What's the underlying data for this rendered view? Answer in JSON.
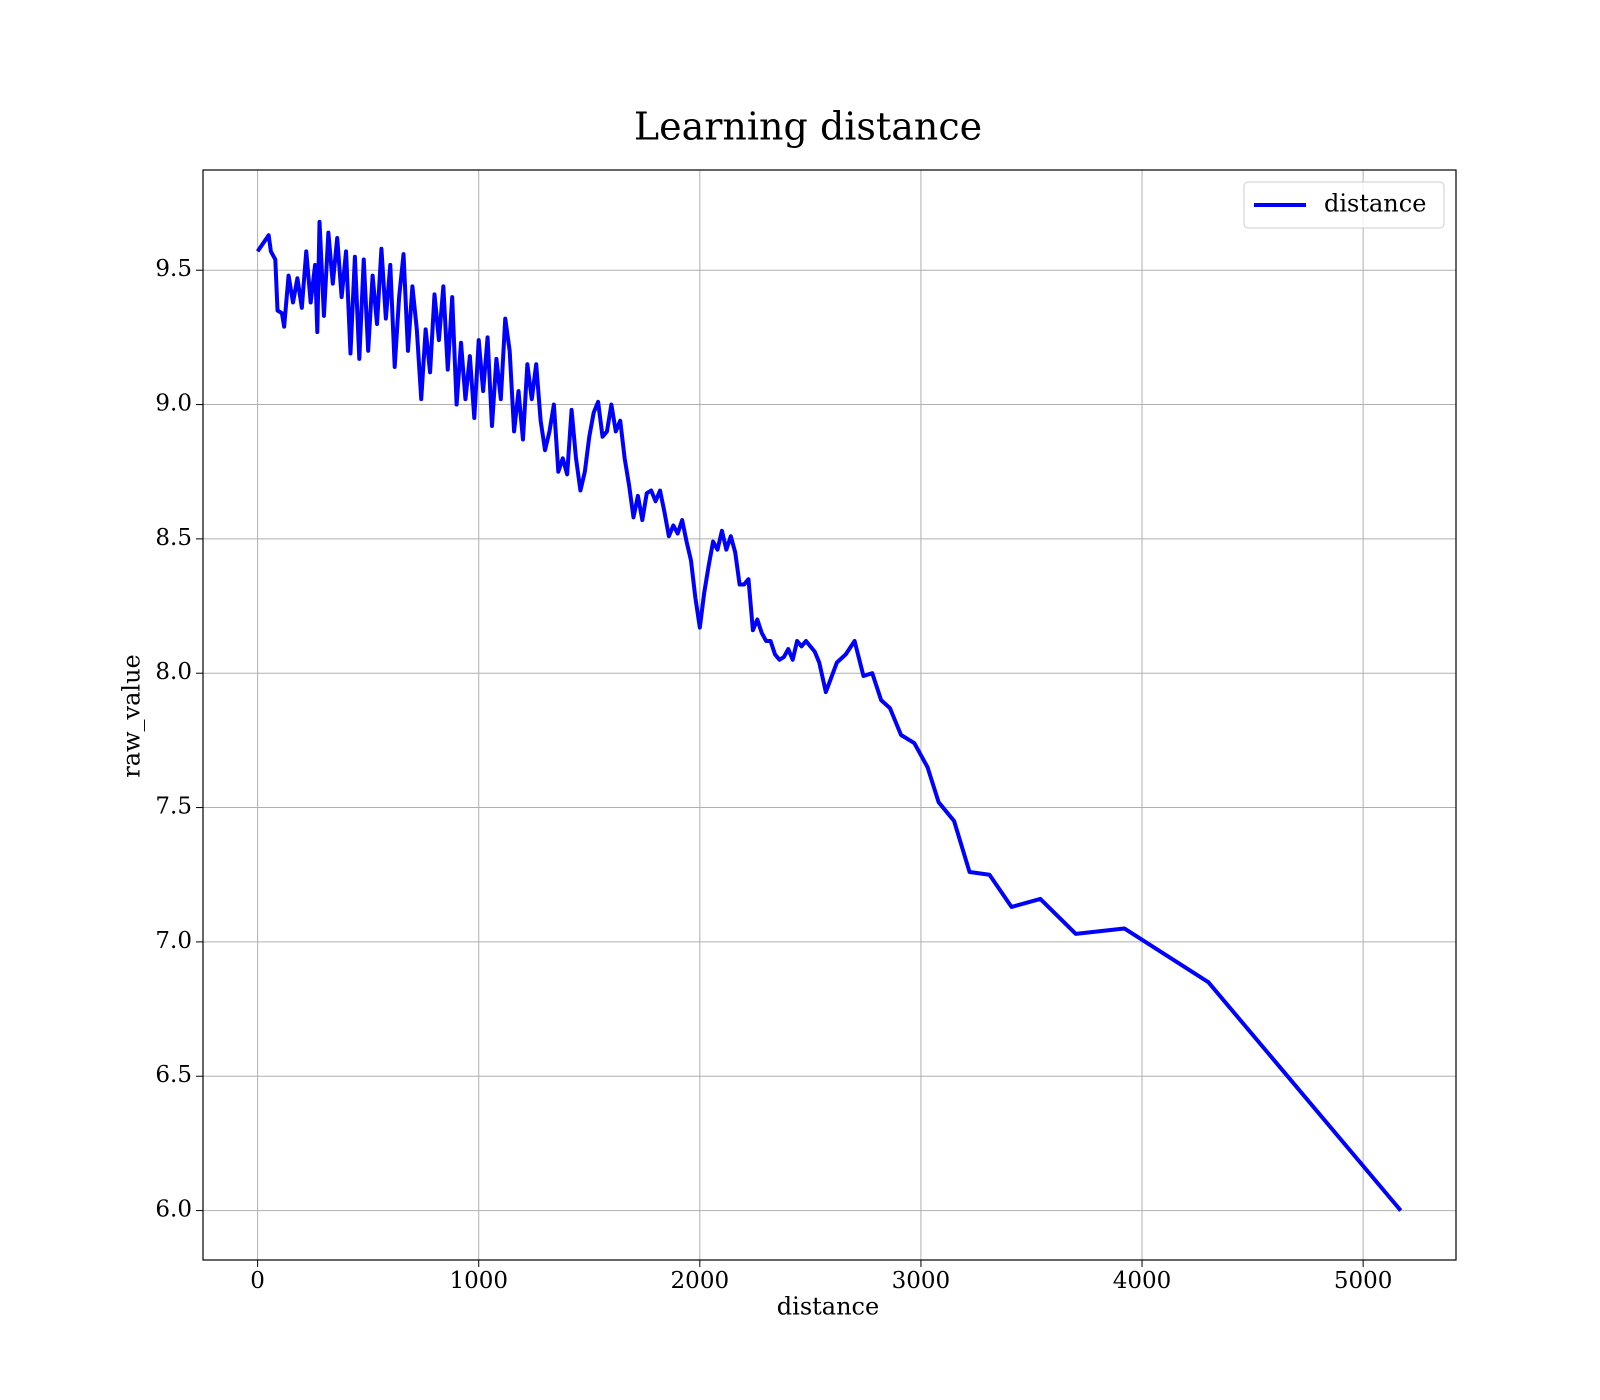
{
  "chart_data": {
    "type": "line",
    "title": "Learning distance",
    "xlabel": "distance",
    "ylabel": "raw_value",
    "x": [
      0,
      50,
      60,
      80,
      90,
      110,
      120,
      140,
      160,
      180,
      200,
      220,
      240,
      260,
      270,
      280,
      300,
      320,
      340,
      360,
      380,
      400,
      420,
      440,
      460,
      480,
      500,
      520,
      540,
      560,
      580,
      600,
      620,
      640,
      660,
      680,
      700,
      720,
      740,
      760,
      780,
      800,
      820,
      840,
      860,
      880,
      900,
      920,
      940,
      960,
      980,
      1000,
      1020,
      1040,
      1060,
      1080,
      1100,
      1120,
      1140,
      1160,
      1180,
      1200,
      1220,
      1240,
      1260,
      1280,
      1300,
      1320,
      1340,
      1360,
      1380,
      1400,
      1420,
      1440,
      1460,
      1480,
      1500,
      1520,
      1540,
      1560,
      1580,
      1600,
      1620,
      1640,
      1660,
      1680,
      1700,
      1720,
      1740,
      1760,
      1780,
      1800,
      1820,
      1840,
      1860,
      1880,
      1900,
      1920,
      1940,
      1960,
      1980,
      2000,
      2020,
      2040,
      2060,
      2080,
      2100,
      2120,
      2140,
      2160,
      2180,
      2200,
      2220,
      2240,
      2260,
      2280,
      2300,
      2320,
      2340,
      2360,
      2380,
      2400,
      2420,
      2440,
      2460,
      2480,
      2500,
      2520,
      2540,
      2570,
      2620,
      2660,
      2700,
      2740,
      2780,
      2820,
      2860,
      2910,
      2970,
      3030,
      3080,
      3150,
      3220,
      3310,
      3410,
      3540,
      3700,
      3920,
      4300,
      5170
    ],
    "series": [
      {
        "name": "distance",
        "color": "#0000ff",
        "values": [
          9.57,
          9.63,
          9.57,
          9.54,
          9.35,
          9.34,
          9.29,
          9.48,
          9.38,
          9.47,
          9.36,
          9.57,
          9.38,
          9.52,
          9.27,
          9.68,
          9.33,
          9.64,
          9.45,
          9.62,
          9.4,
          9.57,
          9.19,
          9.55,
          9.17,
          9.54,
          9.2,
          9.48,
          9.3,
          9.58,
          9.32,
          9.52,
          9.14,
          9.4,
          9.56,
          9.2,
          9.44,
          9.28,
          9.02,
          9.28,
          9.12,
          9.41,
          9.24,
          9.44,
          9.13,
          9.4,
          9.0,
          9.23,
          9.02,
          9.18,
          8.95,
          9.24,
          9.05,
          9.25,
          8.92,
          9.17,
          9.02,
          9.32,
          9.2,
          8.9,
          9.05,
          8.87,
          9.15,
          9.02,
          9.15,
          8.94,
          8.83,
          8.9,
          9.0,
          8.75,
          8.8,
          8.74,
          8.98,
          8.8,
          8.68,
          8.75,
          8.88,
          8.97,
          9.01,
          8.88,
          8.9,
          9.0,
          8.9,
          8.94,
          8.8,
          8.7,
          8.58,
          8.66,
          8.57,
          8.67,
          8.68,
          8.64,
          8.68,
          8.6,
          8.51,
          8.55,
          8.52,
          8.57,
          8.49,
          8.42,
          8.28,
          8.17,
          8.3,
          8.4,
          8.49,
          8.46,
          8.53,
          8.46,
          8.51,
          8.45,
          8.33,
          8.33,
          8.35,
          8.16,
          8.2,
          8.15,
          8.12,
          8.12,
          8.07,
          8.05,
          8.06,
          8.09,
          8.05,
          8.12,
          8.1,
          8.12,
          8.1,
          8.08,
          8.04,
          7.93,
          8.04,
          8.07,
          8.12,
          7.99,
          8.0,
          7.9,
          7.87,
          7.77,
          7.74,
          7.65,
          7.52,
          7.45,
          7.26,
          7.25,
          7.13,
          7.16,
          7.03,
          7.05,
          6.85,
          6.0
        ]
      }
    ],
    "xlim": [
      -247,
      5420
    ],
    "ylim": [
      5.816,
      9.873
    ],
    "xticks": [
      0,
      1000,
      2000,
      3000,
      4000,
      5000
    ],
    "yticks": [
      {
        "value": 6.0,
        "label": "6.0"
      },
      6.5,
      {
        "value": 7.0,
        "label": "7.0"
      },
      7.5,
      {
        "value": 8.0,
        "label": "8.0"
      },
      8.5,
      {
        "value": 9.0,
        "label": "9.0"
      },
      9.5
    ],
    "grid": true,
    "legend": "upper right"
  }
}
